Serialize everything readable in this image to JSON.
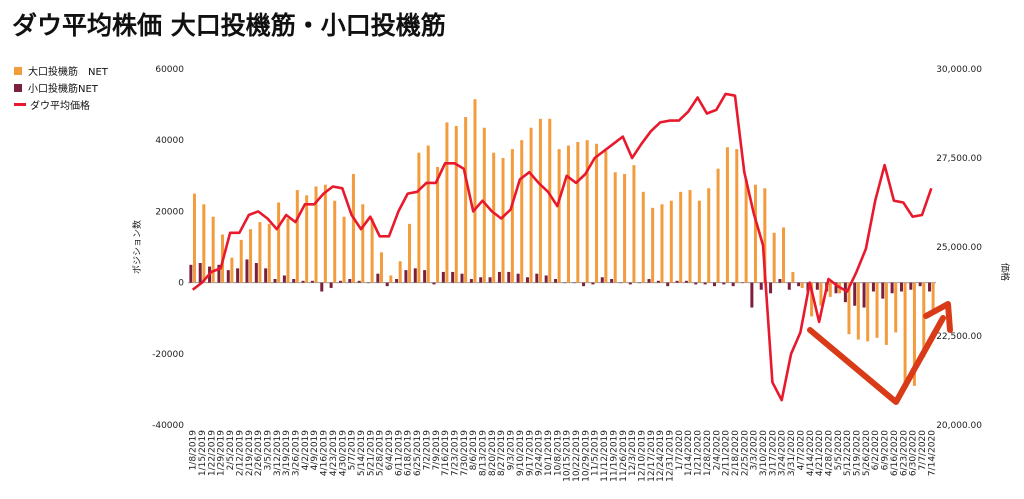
{
  "chart_data": {
    "type": "bar",
    "title": "ダウ平均株価 大口投機筋・小口投機筋",
    "ylabel_left": "ポジション数",
    "ylabel_right": "価格",
    "ylim_left": [
      -40000,
      60000
    ],
    "ylim_right": [
      20000,
      30000
    ],
    "yticks_left": [
      "60000",
      "40000",
      "20000",
      "0",
      "-20000",
      "-40000"
    ],
    "yticks_right": [
      "30,000.00",
      "27,500.00",
      "25,000.00",
      "22,500.00",
      "20,000.00"
    ],
    "legend_position": "top-left",
    "grid": false,
    "x": [
      "1/8/2019",
      "1/15/2019",
      "1/22/2019",
      "1/29/2019",
      "2/5/2019",
      "2/12/2019",
      "2/19/2019",
      "2/26/2019",
      "3/5/2019",
      "3/12/2019",
      "3/19/2019",
      "3/26/2019",
      "4/2/2019",
      "4/9/2019",
      "4/16/2019",
      "4/23/2019",
      "4/30/2019",
      "5/7/2019",
      "5/14/2019",
      "5/21/2019",
      "5/28/2019",
      "6/4/2019",
      "6/11/2019",
      "6/18/2019",
      "6/25/2019",
      "7/2/2019",
      "7/9/2019",
      "7/16/2019",
      "7/23/2019",
      "7/30/2019",
      "8/6/2019",
      "8/13/2019",
      "8/20/2019",
      "8/27/2019",
      "9/3/2019",
      "9/10/2019",
      "9/17/2019",
      "9/24/2019",
      "10/1/2019",
      "10/8/2019",
      "10/15/2019",
      "10/22/2019",
      "10/29/2019",
      "11/5/2019",
      "11/12/2019",
      "11/19/2019",
      "11/26/2019",
      "12/3/2019",
      "12/10/2019",
      "12/17/2019",
      "12/24/2019",
      "12/31/2019",
      "1/7/2020",
      "1/14/2020",
      "1/21/2020",
      "1/28/2020",
      "2/4/2020",
      "2/11/2020",
      "2/18/2020",
      "2/25/2020",
      "3/3/2020",
      "3/10/2020",
      "3/17/2020",
      "3/24/2020",
      "3/31/2020",
      "4/7/2020",
      "4/14/2020",
      "4/21/2020",
      "4/28/2020",
      "5/5/2020",
      "5/12/2020",
      "5/19/2020",
      "5/26/2020",
      "6/2/2020",
      "6/9/2020",
      "6/16/2020",
      "6/23/2020",
      "6/30/2020",
      "7/7/2020",
      "7/14/2020"
    ],
    "series": [
      {
        "name": "大口投機筋　NET",
        "axis": "left",
        "color": "#f39c3d",
        "values": [
          25000,
          22000,
          18500,
          13500,
          7000,
          12000,
          15000,
          17000,
          16500,
          22500,
          18000,
          26000,
          24500,
          27000,
          27500,
          23000,
          18500,
          30500,
          22000,
          18000,
          8500,
          2000,
          6000,
          16500,
          36500,
          38500,
          32500,
          45000,
          44000,
          46500,
          51500,
          43500,
          36500,
          35000,
          37500,
          40000,
          43500,
          46000,
          46000,
          37500,
          38500,
          39500,
          40000,
          39000,
          37000,
          31000,
          30500,
          33000,
          25500,
          21000,
          22000,
          23000,
          25500,
          26000,
          23000,
          26500,
          32000,
          38000,
          37500,
          29000,
          27500,
          26500,
          14000,
          15500,
          3000,
          -1500,
          -9500,
          -6500,
          -4000,
          -3000,
          -14500,
          -16000,
          -16500,
          -15500,
          -17500,
          -14000,
          -28500,
          -29000,
          -21000,
          -8000
        ]
      },
      {
        "name": "小口投機筋NET",
        "axis": "left",
        "color": "#7b1f3a",
        "values": [
          5000,
          5500,
          4500,
          5000,
          3500,
          4000,
          6500,
          5500,
          4000,
          1000,
          2000,
          1000,
          500,
          500,
          -2500,
          -1500,
          500,
          1000,
          500,
          0,
          2500,
          -1000,
          1000,
          3500,
          4000,
          3500,
          -500,
          3000,
          3000,
          2500,
          1000,
          1500,
          1500,
          3000,
          3000,
          2500,
          1500,
          2500,
          2000,
          1000,
          0,
          0,
          -1000,
          -500,
          1500,
          1000,
          0,
          -500,
          0,
          1000,
          500,
          -1000,
          500,
          500,
          -500,
          -500,
          -1000,
          -500,
          -1000,
          0,
          -7000,
          -2000,
          -3000,
          1000,
          -2000,
          -1000,
          -2500,
          -2000,
          -2500,
          -3000,
          -5500,
          -6500,
          -7000,
          -2500,
          -4500,
          -3000,
          -2500,
          -2000,
          -1000,
          -2500
        ]
      },
      {
        "name": "ダウ平均価格",
        "axis": "right",
        "color": "#e8192c",
        "values": [
          23800,
          24000,
          24300,
          24400,
          25400,
          25400,
          25900,
          26000,
          25800,
          25500,
          25900,
          25700,
          26200,
          26200,
          26500,
          26700,
          26650,
          25900,
          25500,
          25850,
          25300,
          25300,
          26000,
          26500,
          26550,
          26800,
          26800,
          27350,
          27350,
          27200,
          26000,
          26300,
          26000,
          25800,
          26050,
          26900,
          27100,
          26800,
          26550,
          26150,
          27000,
          26800,
          27050,
          27500,
          27700,
          27900,
          28100,
          27500,
          27900,
          28250,
          28500,
          28550,
          28550,
          28800,
          29200,
          28750,
          28850,
          29300,
          29250,
          27100,
          25950,
          25050,
          21200,
          20700,
          22000,
          22600,
          24000,
          22900,
          24100,
          23900,
          23750,
          24300,
          24950,
          26300,
          27300,
          26300,
          26250,
          25850,
          25900,
          26650
        ]
      }
    ]
  },
  "legend": [
    {
      "label": "大口投機筋　NET",
      "color": "#f39c3d",
      "kind": "square"
    },
    {
      "label": "小口投機筋NET",
      "color": "#7b1f3a",
      "kind": "square"
    },
    {
      "label": "ダウ平均価格",
      "color": "#e8192c",
      "kind": "line"
    }
  ],
  "annotation": {
    "kind": "arrow",
    "color": "#d93a17",
    "meaning": "V-shaped trend annotation drawn over the last bars"
  }
}
